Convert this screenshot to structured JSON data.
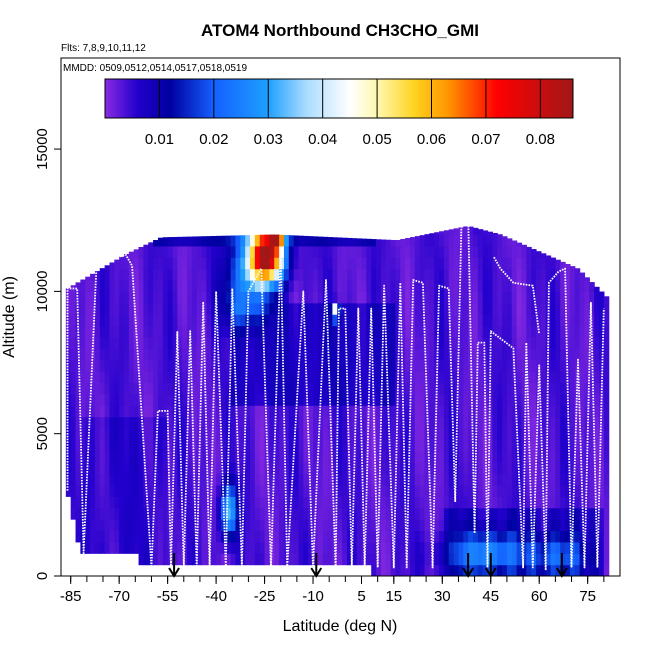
{
  "chart_data": {
    "type": "heatmap",
    "title": "ATOM4 Northbound CH3CHO_GMI",
    "subtitle_flights": "Flts: 7,8,9,10,11,12",
    "subtitle_dates": "MMDD: 0509,0512,0514,0517,0518,0519",
    "xlabel": "Latitude (deg N)",
    "ylabel": "Altitude (m)",
    "xlim": [
      -88,
      85
    ],
    "ylim": [
      0,
      18200
    ],
    "x_ticks": [
      -85,
      -70,
      -55,
      -40,
      -25,
      -10,
      5,
      15,
      30,
      45,
      60,
      75
    ],
    "x_tick_labels": [
      "-85",
      "-70",
      "-55",
      "-40",
      "-25",
      "-10",
      "5",
      "15",
      "30",
      "45",
      "60",
      "75"
    ],
    "x_minor_step": 5,
    "y_ticks": [
      0,
      5000,
      10000,
      15000
    ],
    "y_tick_labels": [
      "0",
      "5000",
      "10000",
      "15000"
    ],
    "colorbar": {
      "range": [
        0,
        0.086
      ],
      "ticks": [
        0.01,
        0.02,
        0.03,
        0.04,
        0.05,
        0.06,
        0.07,
        0.08
      ],
      "tick_labels": [
        "0.01",
        "0.02",
        "0.03",
        "0.04",
        "0.05",
        "0.06",
        "0.07",
        "0.08"
      ],
      "stops": [
        {
          "v": 0.0,
          "c": "#8a2be2"
        },
        {
          "v": 0.006,
          "c": "#2200cc"
        },
        {
          "v": 0.012,
          "c": "#0000a0"
        },
        {
          "v": 0.02,
          "c": "#1460ff"
        },
        {
          "v": 0.03,
          "c": "#1ea0ff"
        },
        {
          "v": 0.037,
          "c": "#aadcff"
        },
        {
          "v": 0.045,
          "c": "#ffffff"
        },
        {
          "v": 0.05,
          "c": "#fff8b0"
        },
        {
          "v": 0.057,
          "c": "#ffd21e"
        },
        {
          "v": 0.063,
          "c": "#ff9600"
        },
        {
          "v": 0.072,
          "c": "#ff0000"
        },
        {
          "v": 0.086,
          "c": "#a01818"
        }
      ]
    },
    "envelope_top": [
      {
        "lat": -86,
        "top": 10100
      },
      {
        "lat": -80,
        "top": 10500
      },
      {
        "lat": -68,
        "top": 11300
      },
      {
        "lat": -57,
        "top": 11900
      },
      {
        "lat": -22,
        "top": 12000
      },
      {
        "lat": 16,
        "top": 11800
      },
      {
        "lat": 38,
        "top": 12300
      },
      {
        "lat": 48,
        "top": 12000
      },
      {
        "lat": 60,
        "top": 11400
      },
      {
        "lat": 72,
        "top": 10800
      },
      {
        "lat": 81,
        "top": 9800
      }
    ],
    "envelope_bottom": [
      {
        "lat": -86,
        "bottom": 3200
      },
      {
        "lat": -83,
        "bottom": 1300
      },
      {
        "lat": -82,
        "bottom": 900
      },
      {
        "lat": 80,
        "bottom": 0
      }
    ],
    "enhancements": [
      {
        "lat": -24,
        "alt": 11300,
        "sx": 5,
        "sy": 900,
        "amp": 0.066
      },
      {
        "lat": -21,
        "alt": 12000,
        "sx": 2,
        "sy": 400,
        "amp": 0.05
      },
      {
        "lat": -28,
        "alt": 11000,
        "sx": 7,
        "sy": 1100,
        "amp": 0.03
      },
      {
        "lat": -36,
        "alt": 2300,
        "sx": 2.5,
        "sy": 900,
        "amp": 0.03
      },
      {
        "lat": -32,
        "alt": 9600,
        "sx": 6,
        "sy": 900,
        "amp": 0.015
      },
      {
        "lat": -3,
        "alt": 9300,
        "sx": 1,
        "sy": 250,
        "amp": 0.045
      },
      {
        "lat": 44,
        "alt": 800,
        "sx": 12,
        "sy": 700,
        "amp": 0.02
      },
      {
        "lat": 66,
        "alt": 700,
        "sx": 8,
        "sy": 700,
        "amp": 0.014
      }
    ],
    "flight_track": [
      {
        "lat": -86,
        "alt": 3000
      },
      {
        "lat": -86,
        "alt": 10100
      },
      {
        "lat": -83,
        "alt": 10100
      },
      {
        "lat": -81,
        "alt": 800
      },
      {
        "lat": -77,
        "alt": 10900
      },
      {
        "lat": -68,
        "alt": 11300
      },
      {
        "lat": -66,
        "alt": 10900
      },
      {
        "lat": -60,
        "alt": 300
      },
      {
        "lat": -58,
        "alt": 5800
      },
      {
        "lat": -55,
        "alt": 5800
      },
      {
        "lat": -54,
        "alt": 300
      },
      {
        "lat": -52,
        "alt": 8600
      },
      {
        "lat": -50,
        "alt": 300
      },
      {
        "lat": -48,
        "alt": 8600
      },
      {
        "lat": -46,
        "alt": 300
      },
      {
        "lat": -44,
        "alt": 9600
      },
      {
        "lat": -42,
        "alt": 300
      },
      {
        "lat": -40,
        "alt": 10000
      },
      {
        "lat": -37,
        "alt": 300
      },
      {
        "lat": -35,
        "alt": 10100
      },
      {
        "lat": -32,
        "alt": 300
      },
      {
        "lat": -30,
        "alt": 10000
      },
      {
        "lat": -26,
        "alt": 10800
      },
      {
        "lat": -23,
        "alt": 300
      },
      {
        "lat": -20,
        "alt": 11500
      },
      {
        "lat": -18,
        "alt": 300
      },
      {
        "lat": -13,
        "alt": 10000
      },
      {
        "lat": -10,
        "alt": 300
      },
      {
        "lat": -6,
        "alt": 10400
      },
      {
        "lat": -3,
        "alt": 200
      },
      {
        "lat": -2,
        "alt": 9400
      },
      {
        "lat": 0,
        "alt": 9400
      },
      {
        "lat": 2,
        "alt": 300
      },
      {
        "lat": 4,
        "alt": 9400
      },
      {
        "lat": 6,
        "alt": 300
      },
      {
        "lat": 8,
        "alt": 9400
      },
      {
        "lat": 10,
        "alt": 300
      },
      {
        "lat": 12,
        "alt": 10200
      },
      {
        "lat": 15,
        "alt": 300
      },
      {
        "lat": 17,
        "alt": 10300
      },
      {
        "lat": 19,
        "alt": 300
      },
      {
        "lat": 21,
        "alt": 10400
      },
      {
        "lat": 24,
        "alt": 10300
      },
      {
        "lat": 27,
        "alt": 300
      },
      {
        "lat": 29,
        "alt": 10200
      },
      {
        "lat": 32,
        "alt": 10100
      },
      {
        "lat": 34,
        "alt": 2600
      },
      {
        "lat": 36,
        "alt": 12800
      },
      {
        "lat": 38,
        "alt": 12800
      },
      {
        "lat": 40,
        "alt": 1500
      },
      {
        "lat": 41,
        "alt": 8200
      },
      {
        "lat": 43,
        "alt": 8200
      },
      {
        "lat": 44,
        "alt": 300
      },
      {
        "lat": 45,
        "alt": 8600
      },
      {
        "lat": 52,
        "alt": 8000
      },
      {
        "lat": 55,
        "alt": 300
      },
      {
        "lat": 56,
        "alt": 8200
      },
      {
        "lat": 58,
        "alt": 300
      },
      {
        "lat": 60,
        "alt": 7400
      },
      {
        "lat": 62,
        "alt": 200
      },
      {
        "lat": 63,
        "alt": 10300
      },
      {
        "lat": 66,
        "alt": 10700
      },
      {
        "lat": 68,
        "alt": 10800
      },
      {
        "lat": 70,
        "alt": 300
      },
      {
        "lat": 72,
        "alt": 7600
      },
      {
        "lat": 74,
        "alt": 300
      },
      {
        "lat": 76,
        "alt": 9600
      },
      {
        "lat": 78,
        "alt": 300
      },
      {
        "lat": 80,
        "alt": 9400
      }
    ],
    "flight_track_2": [
      {
        "lat": 46,
        "alt": 11200
      },
      {
        "lat": 48,
        "alt": 10800
      },
      {
        "lat": 52,
        "alt": 10300
      },
      {
        "lat": 58,
        "alt": 10200
      },
      {
        "lat": 60,
        "alt": 8500
      }
    ],
    "arrows_lat": [
      -53,
      -9,
      38,
      45,
      67
    ]
  }
}
